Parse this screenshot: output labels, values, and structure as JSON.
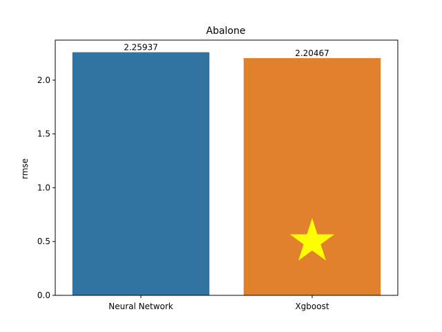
{
  "chart_data": {
    "type": "bar",
    "title": "Abalone",
    "xlabel": "",
    "ylabel": "rmse",
    "categories": [
      "Neural Network",
      "Xgboost"
    ],
    "values": [
      2.25937,
      2.20467
    ],
    "value_labels": [
      "2.25937",
      "2.20467"
    ],
    "bar_colors": [
      "#3274a1",
      "#e1812c"
    ],
    "ylim": [
      0,
      2.372
    ],
    "yticks": [
      0.0,
      0.5,
      1.0,
      1.5,
      2.0
    ],
    "ytick_labels": [
      "0.0",
      "0.5",
      "1.0",
      "1.5",
      "2.0"
    ],
    "grid": false,
    "annotations": [
      {
        "kind": "star-marker",
        "category": "Xgboost",
        "y": 0.5,
        "color": "#ffff00",
        "meaning": "best (lowest rmse)"
      }
    ]
  }
}
